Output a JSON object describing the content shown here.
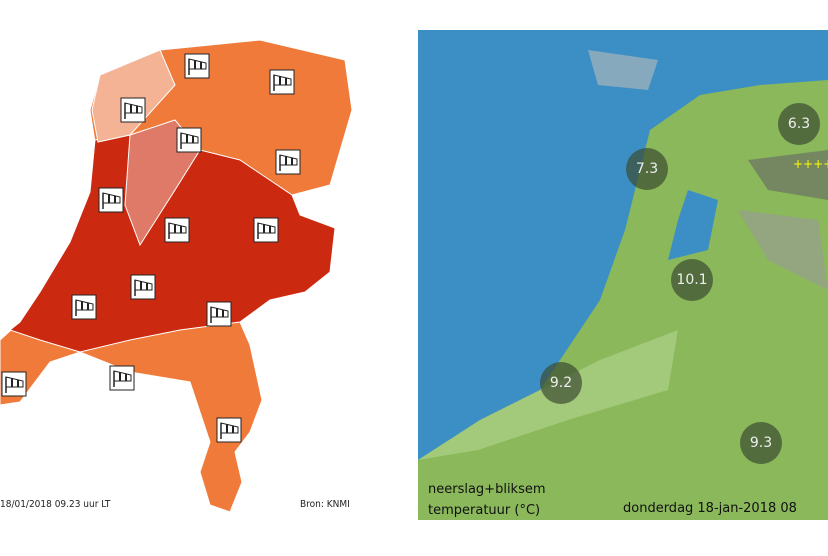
{
  "warning_map": {
    "timestamp": "18/01/2018 09.23 uur LT",
    "source": "Bron: KNMI",
    "colors": {
      "orange": "#f07a3a",
      "red": "#cc2a10",
      "pale": "#f4b395",
      "pink": "#e07a68"
    },
    "icon": "wind-sock-icon"
  },
  "weather_map": {
    "legend_line1": "neerslag+bliksem",
    "legend_line2": "temperatuur (°C)",
    "date": "donderdag 18-jan-2018 08",
    "temperatures": [
      "6.3",
      "7.3",
      "10.1",
      "9.2",
      "9.3"
    ],
    "colors": {
      "sea": "#3b8fc4",
      "land": "#8ab85a"
    }
  }
}
